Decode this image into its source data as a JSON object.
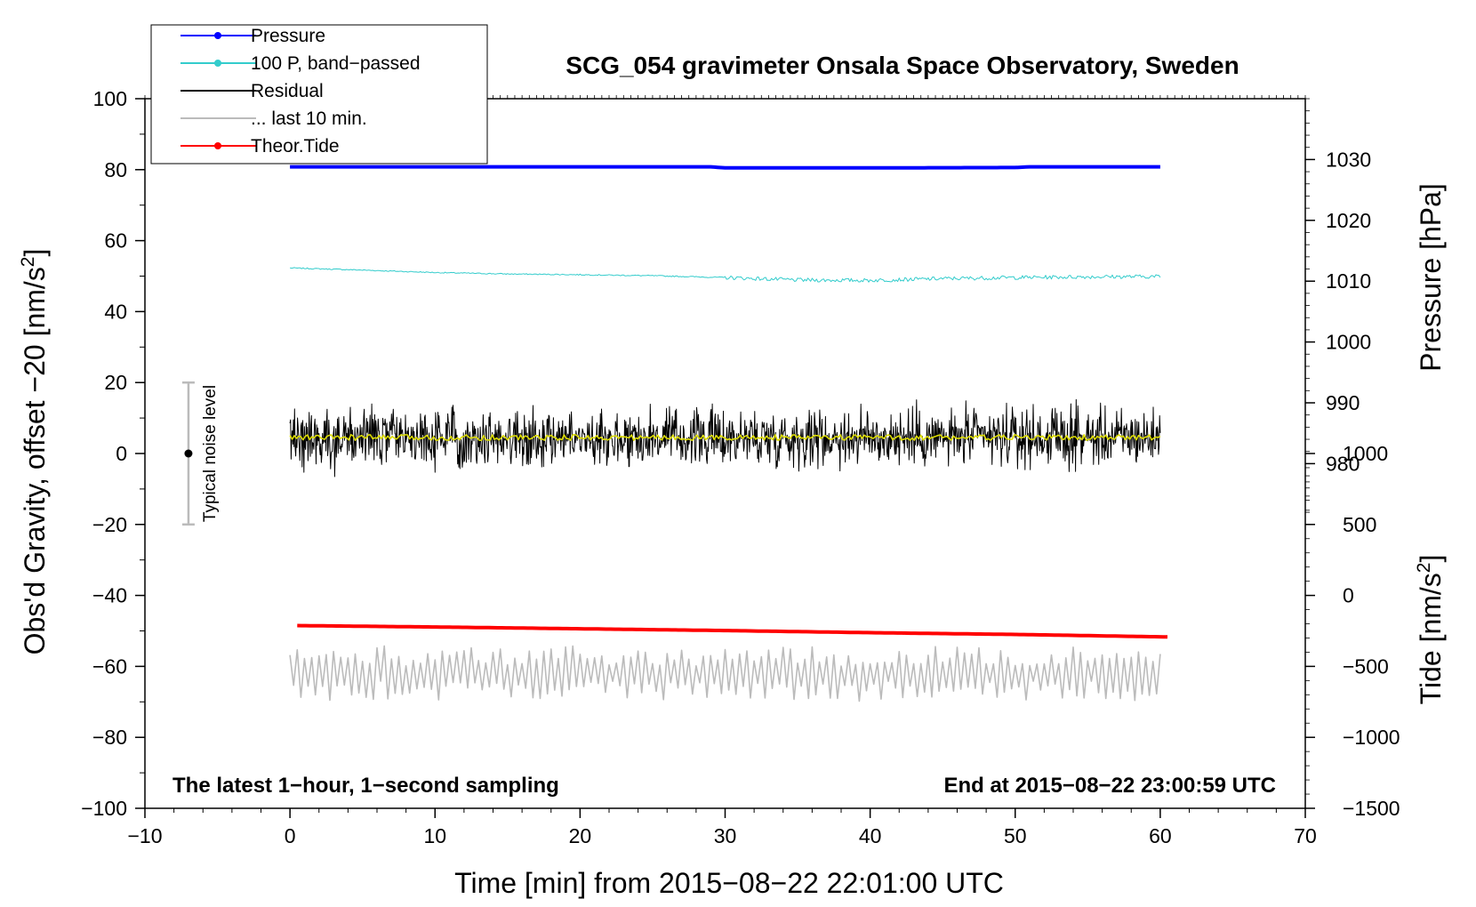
{
  "chart_data": {
    "type": "line",
    "title": "SCG_054 gravimeter Onsala Space Observatory, Sweden",
    "xlabel": "Time [min] from 2015−08−22 22:01:00 UTC",
    "ylabel_left_main": "Obs'd Gravity, offset −20 [nm/s",
    "ylabel_left_sup": "2",
    "ylabel_left_end": "]",
    "ylabel_right_pressure": "Pressure [hPa]",
    "ylabel_right_tide_main": "Tide [nm/s",
    "ylabel_right_tide_sup": "2",
    "ylabel_right_tide_end": "]",
    "xlim": [
      -10,
      70
    ],
    "ylim": [
      -100,
      100
    ],
    "x_ticks": [
      -10,
      0,
      10,
      20,
      30,
      40,
      50,
      60,
      70
    ],
    "x_tick_labels": [
      "−10",
      "0",
      "10",
      "20",
      "30",
      "40",
      "50",
      "60",
      "70"
    ],
    "y_ticks": [
      -100,
      -80,
      -60,
      -40,
      -20,
      0,
      20,
      40,
      60,
      80,
      100
    ],
    "y_tick_labels": [
      "−100",
      "−80",
      "−60",
      "−40",
      "−20",
      "0",
      "20",
      "40",
      "60",
      "80",
      "100"
    ],
    "pressure_axis": {
      "ticks": [
        980,
        990,
        1000,
        1010,
        1020,
        1030
      ],
      "tick_labels": [
        "980",
        "990",
        "1000",
        "1010",
        "1020",
        "1030"
      ],
      "value_range": [
        970,
        1040
      ],
      "gravity_range": [
        -20,
        100
      ]
    },
    "tide_axis": {
      "ticks": [
        -1500,
        -1000,
        -500,
        0,
        500,
        1000
      ],
      "tick_labels": [
        "−1500",
        "−1000",
        "−500",
        "0",
        "500",
        "1000"
      ],
      "value_range": [
        -1500,
        1000
      ],
      "gravity_range": [
        -100,
        0
      ]
    },
    "series": [
      {
        "name": "Pressure",
        "legend": "Pressure",
        "color": "#0000ff",
        "style": "line+dot",
        "x": [
          0,
          10,
          20,
          29,
          30,
          40,
          50,
          51,
          60
        ],
        "y": [
          80.8,
          80.8,
          80.8,
          80.8,
          80.5,
          80.5,
          80.6,
          80.8,
          80.8
        ]
      },
      {
        "name": "100 P, band-passed",
        "legend": "100 P, band−passed",
        "color": "#33cccc",
        "style": "line+dot",
        "x": [
          0,
          5,
          10,
          15,
          20,
          25,
          30,
          35,
          40,
          45,
          50,
          55,
          60
        ],
        "y": [
          52.3,
          51.7,
          51.0,
          50.6,
          50.4,
          50.1,
          49.6,
          48.9,
          48.8,
          49.3,
          49.6,
          49.8,
          49.9
        ]
      },
      {
        "name": "Residual",
        "legend": "Residual",
        "color": "#000000",
        "style": "line",
        "x": [
          0,
          60
        ],
        "y": [
          4.5,
          4.5
        ],
        "noise_amplitude": 6
      },
      {
        "name": "Residual smoothed",
        "color": "#dddd00",
        "style": "line",
        "x": [
          0,
          60
        ],
        "y": [
          4.5,
          4.5
        ]
      },
      {
        "name": "... last 10 min.",
        "legend": "... last 10 min.",
        "color": "#bbbbbb",
        "style": "line",
        "x": [
          0,
          60
        ],
        "y": [
          -62,
          -62
        ],
        "noise_amplitude": 6
      },
      {
        "name": "Theor.Tide",
        "legend": "Theor.Tide",
        "color": "#ff0000",
        "style": "line+dot",
        "x": [
          0.5,
          10,
          20,
          30,
          40,
          50,
          60.5
        ],
        "y": [
          -48.5,
          -48.9,
          -49.4,
          -49.9,
          -50.5,
          -51.0,
          -51.7
        ]
      }
    ],
    "noise_bar": {
      "label": "Typical noise level",
      "x": -7,
      "y_center": 0,
      "y_low": -20,
      "y_high": 20
    },
    "annotations": {
      "bottom_left": "The latest 1−hour, 1−second sampling",
      "bottom_right": "End at 2015−08−22 23:00:59 UTC"
    },
    "legend_position": "top-left",
    "grid": false
  }
}
